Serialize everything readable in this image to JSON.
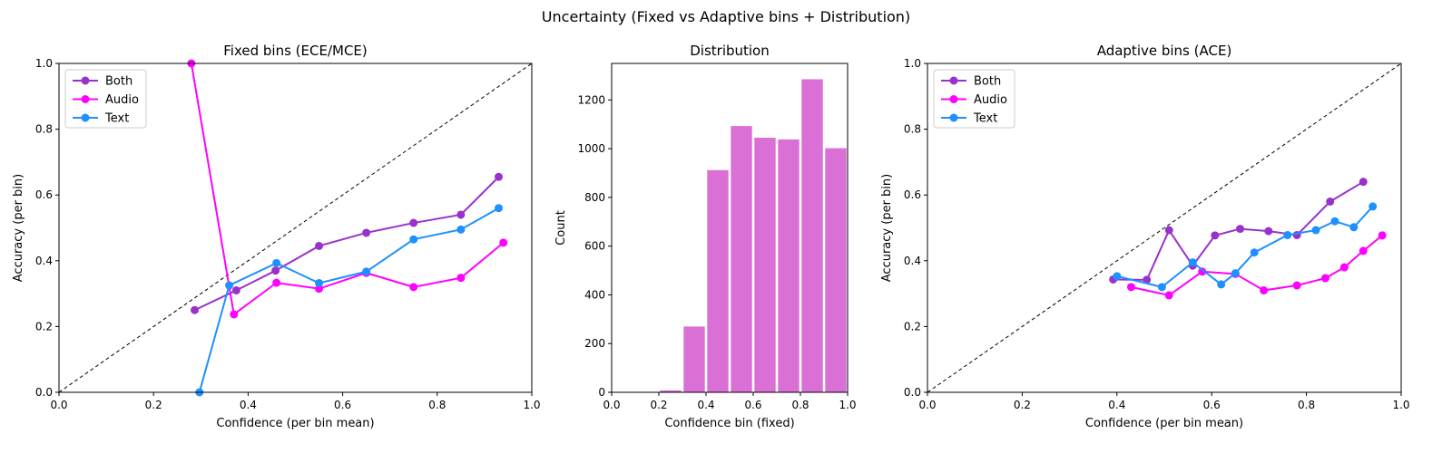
{
  "figure": {
    "suptitle": "Uncertainty (Fixed vs Adaptive bins + Distribution)"
  },
  "chart_data": [
    {
      "id": "fixed",
      "type": "line",
      "title": "Fixed bins (ECE/MCE)",
      "xlabel": "Confidence (per bin mean)",
      "ylabel": "Accuracy (per bin)",
      "xlim": [
        0,
        1
      ],
      "ylim": [
        0,
        1
      ],
      "xticks": [
        "0.0",
        "0.2",
        "0.4",
        "0.6",
        "0.8",
        "1.0"
      ],
      "yticks": [
        "0.0",
        "0.2",
        "0.4",
        "0.6",
        "0.8",
        "1.0"
      ],
      "diagonal": true,
      "grid": false,
      "legend_position": "upper-left",
      "series": [
        {
          "name": "Both",
          "color": "#9932CC",
          "x": [
            0.287,
            0.375,
            0.458,
            0.55,
            0.65,
            0.75,
            0.85,
            0.93
          ],
          "y": [
            0.25,
            0.31,
            0.37,
            0.445,
            0.485,
            0.515,
            0.54,
            0.655
          ]
        },
        {
          "name": "Audio",
          "color": "#FF00FF",
          "x": [
            0.28,
            0.37,
            0.46,
            0.55,
            0.65,
            0.75,
            0.85,
            0.94
          ],
          "y": [
            1.0,
            0.237,
            0.333,
            0.315,
            0.363,
            0.32,
            0.348,
            0.455
          ]
        },
        {
          "name": "Text",
          "color": "#1E90FF",
          "x": [
            0.297,
            0.36,
            0.46,
            0.55,
            0.65,
            0.75,
            0.85,
            0.93
          ],
          "y": [
            0.0,
            0.325,
            0.393,
            0.332,
            0.367,
            0.465,
            0.495,
            0.56
          ]
        }
      ]
    },
    {
      "id": "dist",
      "type": "bar",
      "title": "Distribution",
      "xlabel": "Confidence bin (fixed)",
      "ylabel": "Count",
      "xlim": [
        0,
        1
      ],
      "ylim": [
        0,
        1350
      ],
      "xticks": [
        "0.0",
        "0.2",
        "0.4",
        "0.6",
        "0.8",
        "1.0"
      ],
      "yticks": [
        "0",
        "200",
        "400",
        "600",
        "800",
        "1000",
        "1200"
      ],
      "color": "#DA70D6",
      "bins": [
        {
          "x0": 0.2,
          "x1": 0.3,
          "value": 8
        },
        {
          "x0": 0.3,
          "x1": 0.4,
          "value": 270
        },
        {
          "x0": 0.4,
          "x1": 0.5,
          "value": 912
        },
        {
          "x0": 0.5,
          "x1": 0.6,
          "value": 1093
        },
        {
          "x0": 0.6,
          "x1": 0.7,
          "value": 1045
        },
        {
          "x0": 0.7,
          "x1": 0.8,
          "value": 1038
        },
        {
          "x0": 0.8,
          "x1": 0.9,
          "value": 1285
        },
        {
          "x0": 0.9,
          "x1": 1.0,
          "value": 1002
        }
      ]
    },
    {
      "id": "adaptive",
      "type": "line",
      "title": "Adaptive bins (ACE)",
      "xlabel": "Confidence (per bin mean)",
      "ylabel": "Accuracy (per bin)",
      "xlim": [
        0,
        1
      ],
      "ylim": [
        0,
        1
      ],
      "xticks": [
        "0.0",
        "0.2",
        "0.4",
        "0.6",
        "0.8",
        "1.0"
      ],
      "yticks": [
        "0.0",
        "0.2",
        "0.4",
        "0.6",
        "0.8",
        "1.0"
      ],
      "diagonal": true,
      "grid": false,
      "legend_position": "upper-left",
      "series": [
        {
          "name": "Both",
          "color": "#9932CC",
          "x": [
            0.392,
            0.463,
            0.51,
            0.56,
            0.607,
            0.66,
            0.72,
            0.78,
            0.85,
            0.92
          ],
          "y": [
            0.343,
            0.342,
            0.493,
            0.385,
            0.477,
            0.497,
            0.49,
            0.478,
            0.58,
            0.64
          ]
        },
        {
          "name": "Audio",
          "color": "#FF00FF",
          "x": [
            0.43,
            0.51,
            0.58,
            0.65,
            0.71,
            0.78,
            0.84,
            0.88,
            0.92,
            0.96
          ],
          "y": [
            0.32,
            0.295,
            0.367,
            0.36,
            0.31,
            0.325,
            0.347,
            0.38,
            0.43,
            0.477
          ]
        },
        {
          "name": "Text",
          "color": "#1E90FF",
          "x": [
            0.4,
            0.495,
            0.56,
            0.62,
            0.65,
            0.69,
            0.76,
            0.82,
            0.86,
            0.9,
            0.94
          ],
          "y": [
            0.353,
            0.32,
            0.395,
            0.328,
            0.362,
            0.425,
            0.478,
            0.493,
            0.52,
            0.502,
            0.565
          ]
        }
      ]
    }
  ]
}
